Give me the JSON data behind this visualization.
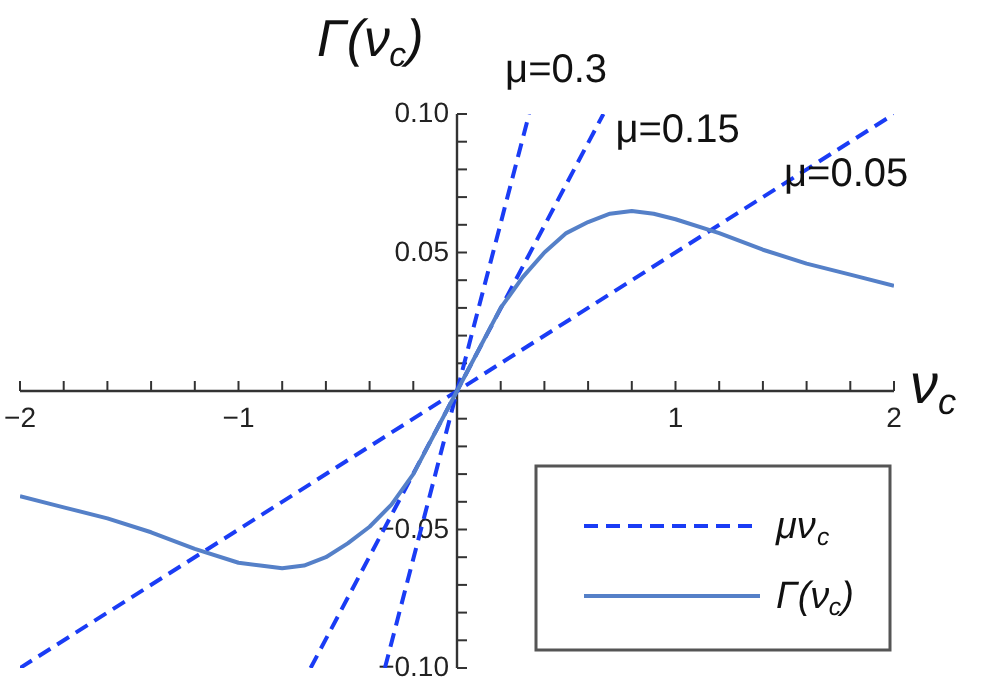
{
  "chart_data": {
    "type": "line",
    "xlabel": "ν$_{c}$",
    "ylabel": "Γ(ν$_{c}$)",
    "xlim": [
      -2,
      2
    ],
    "ylim": [
      -0.1,
      0.1
    ],
    "xticks": [
      -2,
      {
        "value": -1.8,
        "label": null
      },
      {
        "value": -1.6,
        "label": null
      },
      {
        "value": -1.4,
        "label": null
      },
      {
        "value": -1.2,
        "label": null
      },
      -1,
      {
        "value": -0.8,
        "label": null
      },
      {
        "value": -0.6,
        "label": null
      },
      {
        "value": -0.4,
        "label": null
      },
      {
        "value": -0.2,
        "label": null
      },
      {
        "value": 0.2,
        "label": null
      },
      {
        "value": 0.4,
        "label": null
      },
      {
        "value": 0.6,
        "label": null
      },
      {
        "value": 0.8,
        "label": null
      },
      1,
      {
        "value": 1.2,
        "label": null
      },
      {
        "value": 1.4,
        "label": null
      },
      {
        "value": 1.6,
        "label": null
      },
      {
        "value": 1.8,
        "label": null
      },
      2
    ],
    "yticks": [
      {
        "value": -0.1,
        "label": "−0.10"
      },
      {
        "value": -0.09,
        "label": null
      },
      {
        "value": -0.08,
        "label": null
      },
      {
        "value": -0.07,
        "label": null
      },
      {
        "value": -0.06,
        "label": null
      },
      {
        "value": -0.05,
        "label": "−0.05"
      },
      {
        "value": -0.04,
        "label": null
      },
      {
        "value": -0.03,
        "label": null
      },
      {
        "value": -0.02,
        "label": null
      },
      {
        "value": -0.01,
        "label": null
      },
      {
        "value": 0.01,
        "label": null
      },
      {
        "value": 0.02,
        "label": null
      },
      {
        "value": 0.03,
        "label": null
      },
      {
        "value": 0.04,
        "label": null
      },
      {
        "value": 0.05,
        "label": "0.05"
      },
      {
        "value": 0.06,
        "label": null
      },
      {
        "value": 0.07,
        "label": null
      },
      {
        "value": 0.08,
        "label": null
      },
      {
        "value": 0.09,
        "label": null
      },
      {
        "value": 0.1,
        "label": "0.10"
      }
    ],
    "grid": false,
    "legend": "bottom right",
    "annotations": [
      "μν$_{c}$"
    ],
    "series": [
      {
        "name": "μ=0.3",
        "color": "#1a3cf5",
        "line_style": "dashed",
        "x": [
          -0.33,
          0.33
        ],
        "values": [
          -0.1,
          0.1
        ]
      },
      {
        "name": "μ=0.15",
        "color": "#1a3cf5",
        "line_style": "dashed",
        "x": [
          -0.67,
          0.67
        ],
        "values": [
          -0.1,
          0.1
        ]
      },
      {
        "name": "μ=0.05",
        "color": "#1a3cf5",
        "line_style": "dashed",
        "x": [
          -2,
          2
        ],
        "values": [
          -0.1,
          0.1
        ]
      },
      {
        "name": "Γ(ν$_{c}$)",
        "color": "#5580c8",
        "line_style": "solid",
        "x": [
          -2,
          -1.8,
          -1.6,
          -1.4,
          -1.2,
          -1.0,
          -0.9,
          -0.8,
          -0.7,
          -0.6,
          -0.5,
          -0.4,
          -0.3,
          -0.2,
          -0.1,
          0,
          0.1,
          0.2,
          0.3,
          0.4,
          0.5,
          0.6,
          0.7,
          0.8,
          0.9,
          1.0,
          1.2,
          1.4,
          1.6,
          1.8,
          2.0
        ],
        "values": [
          -0.038,
          -0.042,
          -0.046,
          -0.051,
          -0.057,
          -0.062,
          -0.063,
          -0.064,
          -0.063,
          -0.06,
          -0.055,
          -0.049,
          -0.041,
          -0.03,
          -0.015,
          0,
          0.015,
          0.03,
          0.041,
          0.05,
          0.057,
          0.061,
          0.064,
          0.065,
          0.064,
          0.062,
          0.057,
          0.051,
          0.046,
          0.042,
          0.038
        ]
      }
    ]
  }
}
